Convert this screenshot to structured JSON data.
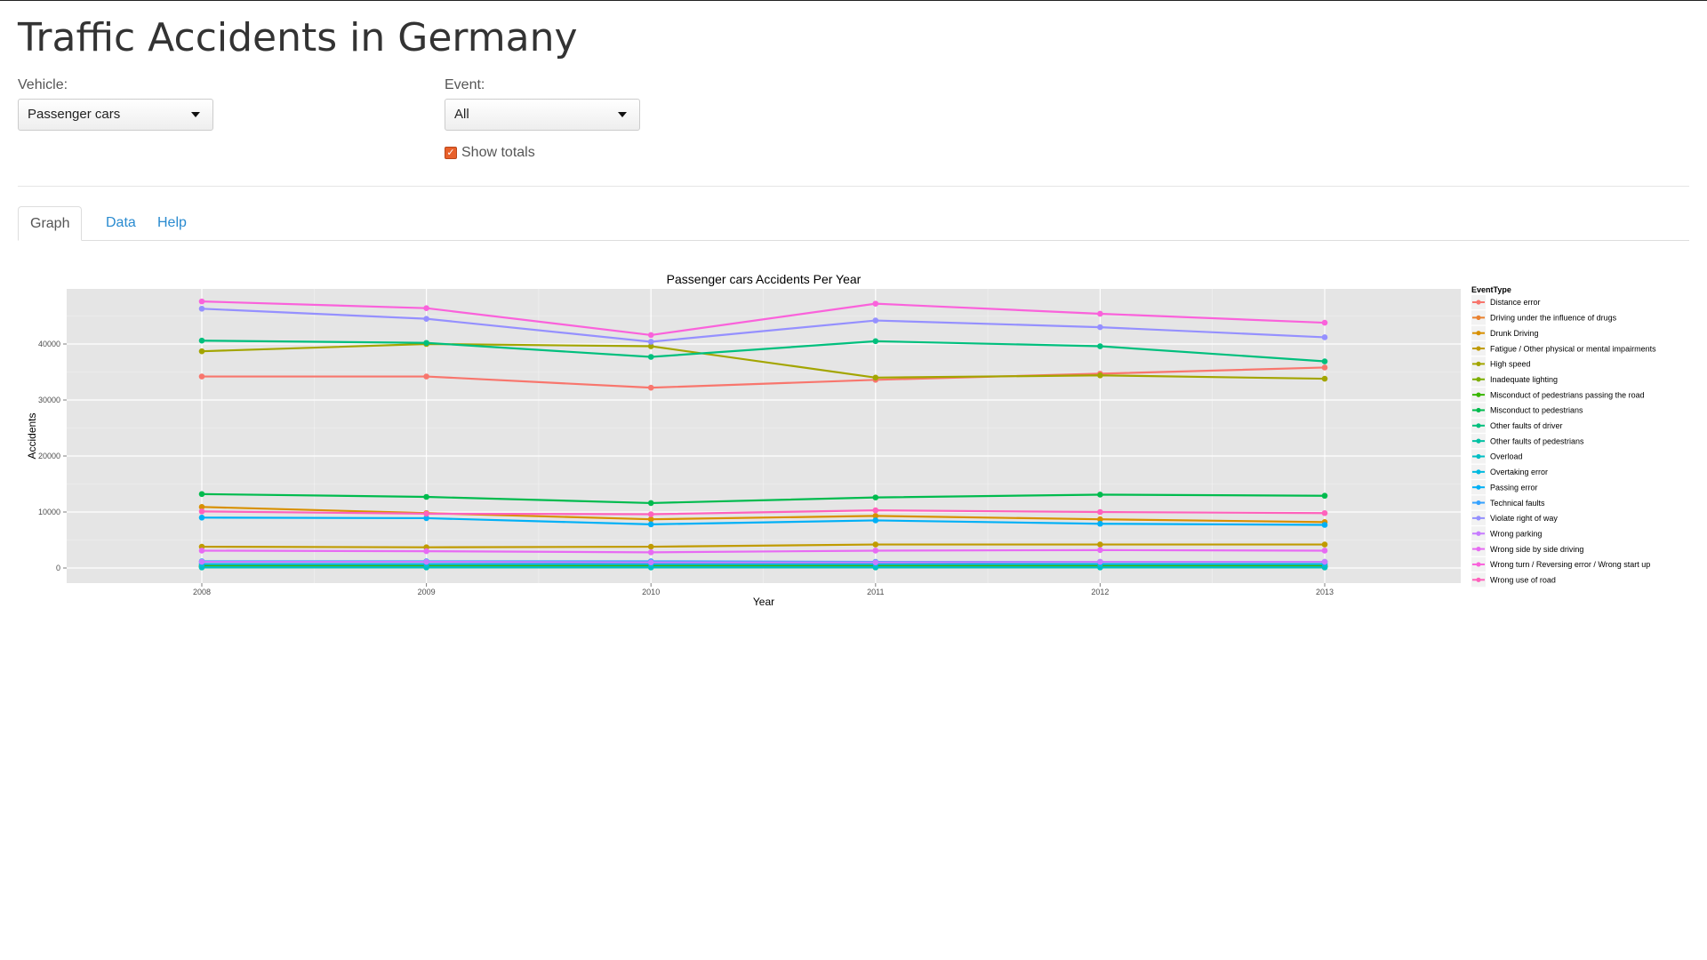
{
  "page": {
    "title": "Traffic Accidents in Germany"
  },
  "controls": {
    "vehicle_label": "Vehicle:",
    "vehicle_value": "Passenger cars",
    "event_label": "Event:",
    "event_value": "All",
    "show_totals_label": "Show totals",
    "show_totals_checked": true
  },
  "tabs": [
    {
      "label": "Graph",
      "active": true
    },
    {
      "label": "Data",
      "active": false
    },
    {
      "label": "Help",
      "active": false
    }
  ],
  "icons": {
    "select_caret": "caret-down-icon",
    "checkbox": "check-icon"
  },
  "colors": {
    "checkbox": "#e8602a",
    "tab_link": "#2a8bd0",
    "plot_bg": "#e5e5e5"
  },
  "chart_data": {
    "type": "line",
    "title": "Passenger cars Accidents Per Year",
    "xlabel": "Year",
    "ylabel": "Accidents",
    "x": [
      2008,
      2009,
      2010,
      2011,
      2012,
      2013
    ],
    "ylim": [
      -2500,
      50000
    ],
    "yticks": [
      0,
      10000,
      20000,
      30000,
      40000
    ],
    "grid": true,
    "legend_title": "EventType",
    "legend_position": "right",
    "series": [
      {
        "name": "Distance error",
        "color": "#F8766D",
        "values": [
          34200,
          34200,
          32200,
          33600,
          34700,
          35800
        ]
      },
      {
        "name": "Driving under the influence of drugs",
        "color": "#EA8331",
        "values": [
          200,
          200,
          200,
          250,
          250,
          250
        ]
      },
      {
        "name": "Drunk Driving",
        "color": "#D89000",
        "values": [
          10900,
          9800,
          8700,
          9300,
          8700,
          8200
        ]
      },
      {
        "name": "Fatigue / Other physical or mental impairments",
        "color": "#C09B00",
        "values": [
          3800,
          3700,
          3800,
          4200,
          4200,
          4200
        ]
      },
      {
        "name": "High speed",
        "color": "#A3A500",
        "values": [
          38700,
          40000,
          39600,
          34000,
          34400,
          33800
        ]
      },
      {
        "name": "Inadequate lighting",
        "color": "#7CAE00",
        "values": [
          400,
          400,
          400,
          400,
          400,
          400
        ]
      },
      {
        "name": "Misconduct of pedestrians passing the road",
        "color": "#39B600",
        "values": [
          300,
          300,
          300,
          300,
          300,
          300
        ]
      },
      {
        "name": "Misconduct to pedestrians",
        "color": "#00BB4E",
        "values": [
          13200,
          12700,
          11600,
          12600,
          13100,
          12900
        ]
      },
      {
        "name": "Other faults of driver",
        "color": "#00BF7D",
        "values": [
          40600,
          40200,
          37700,
          40500,
          39600,
          36900
        ]
      },
      {
        "name": "Other faults of pedestrians",
        "color": "#00C1A3",
        "values": [
          100,
          100,
          100,
          100,
          100,
          100
        ]
      },
      {
        "name": "Overload",
        "color": "#00BFC4",
        "values": [
          150,
          150,
          150,
          150,
          150,
          150
        ]
      },
      {
        "name": "Overtaking error",
        "color": "#00BAE0",
        "values": [
          700,
          700,
          700,
          700,
          700,
          700
        ]
      },
      {
        "name": "Passing error",
        "color": "#00B0F6",
        "values": [
          9000,
          8900,
          7800,
          8500,
          7900,
          7700
        ]
      },
      {
        "name": "Technical faults",
        "color": "#35A2FF",
        "values": [
          1200,
          1200,
          1200,
          1100,
          1100,
          1100
        ]
      },
      {
        "name": "Violate right of way",
        "color": "#9590FF",
        "values": [
          46300,
          44500,
          40400,
          44200,
          43000,
          41200
        ]
      },
      {
        "name": "Wrong parking",
        "color": "#C77CFF",
        "values": [
          1100,
          1100,
          1000,
          1000,
          1100,
          1100
        ]
      },
      {
        "name": "Wrong side by side driving",
        "color": "#E76BF3",
        "values": [
          3100,
          3000,
          2800,
          3100,
          3200,
          3100
        ]
      },
      {
        "name": "Wrong turn / Reversing error / Wrong start up",
        "color": "#FA62DB",
        "values": [
          47600,
          46400,
          41600,
          47200,
          45400,
          43800
        ]
      },
      {
        "name": "Wrong use of road",
        "color": "#FF62BC",
        "values": [
          10100,
          9700,
          9600,
          10300,
          10000,
          9800
        ]
      }
    ]
  }
}
